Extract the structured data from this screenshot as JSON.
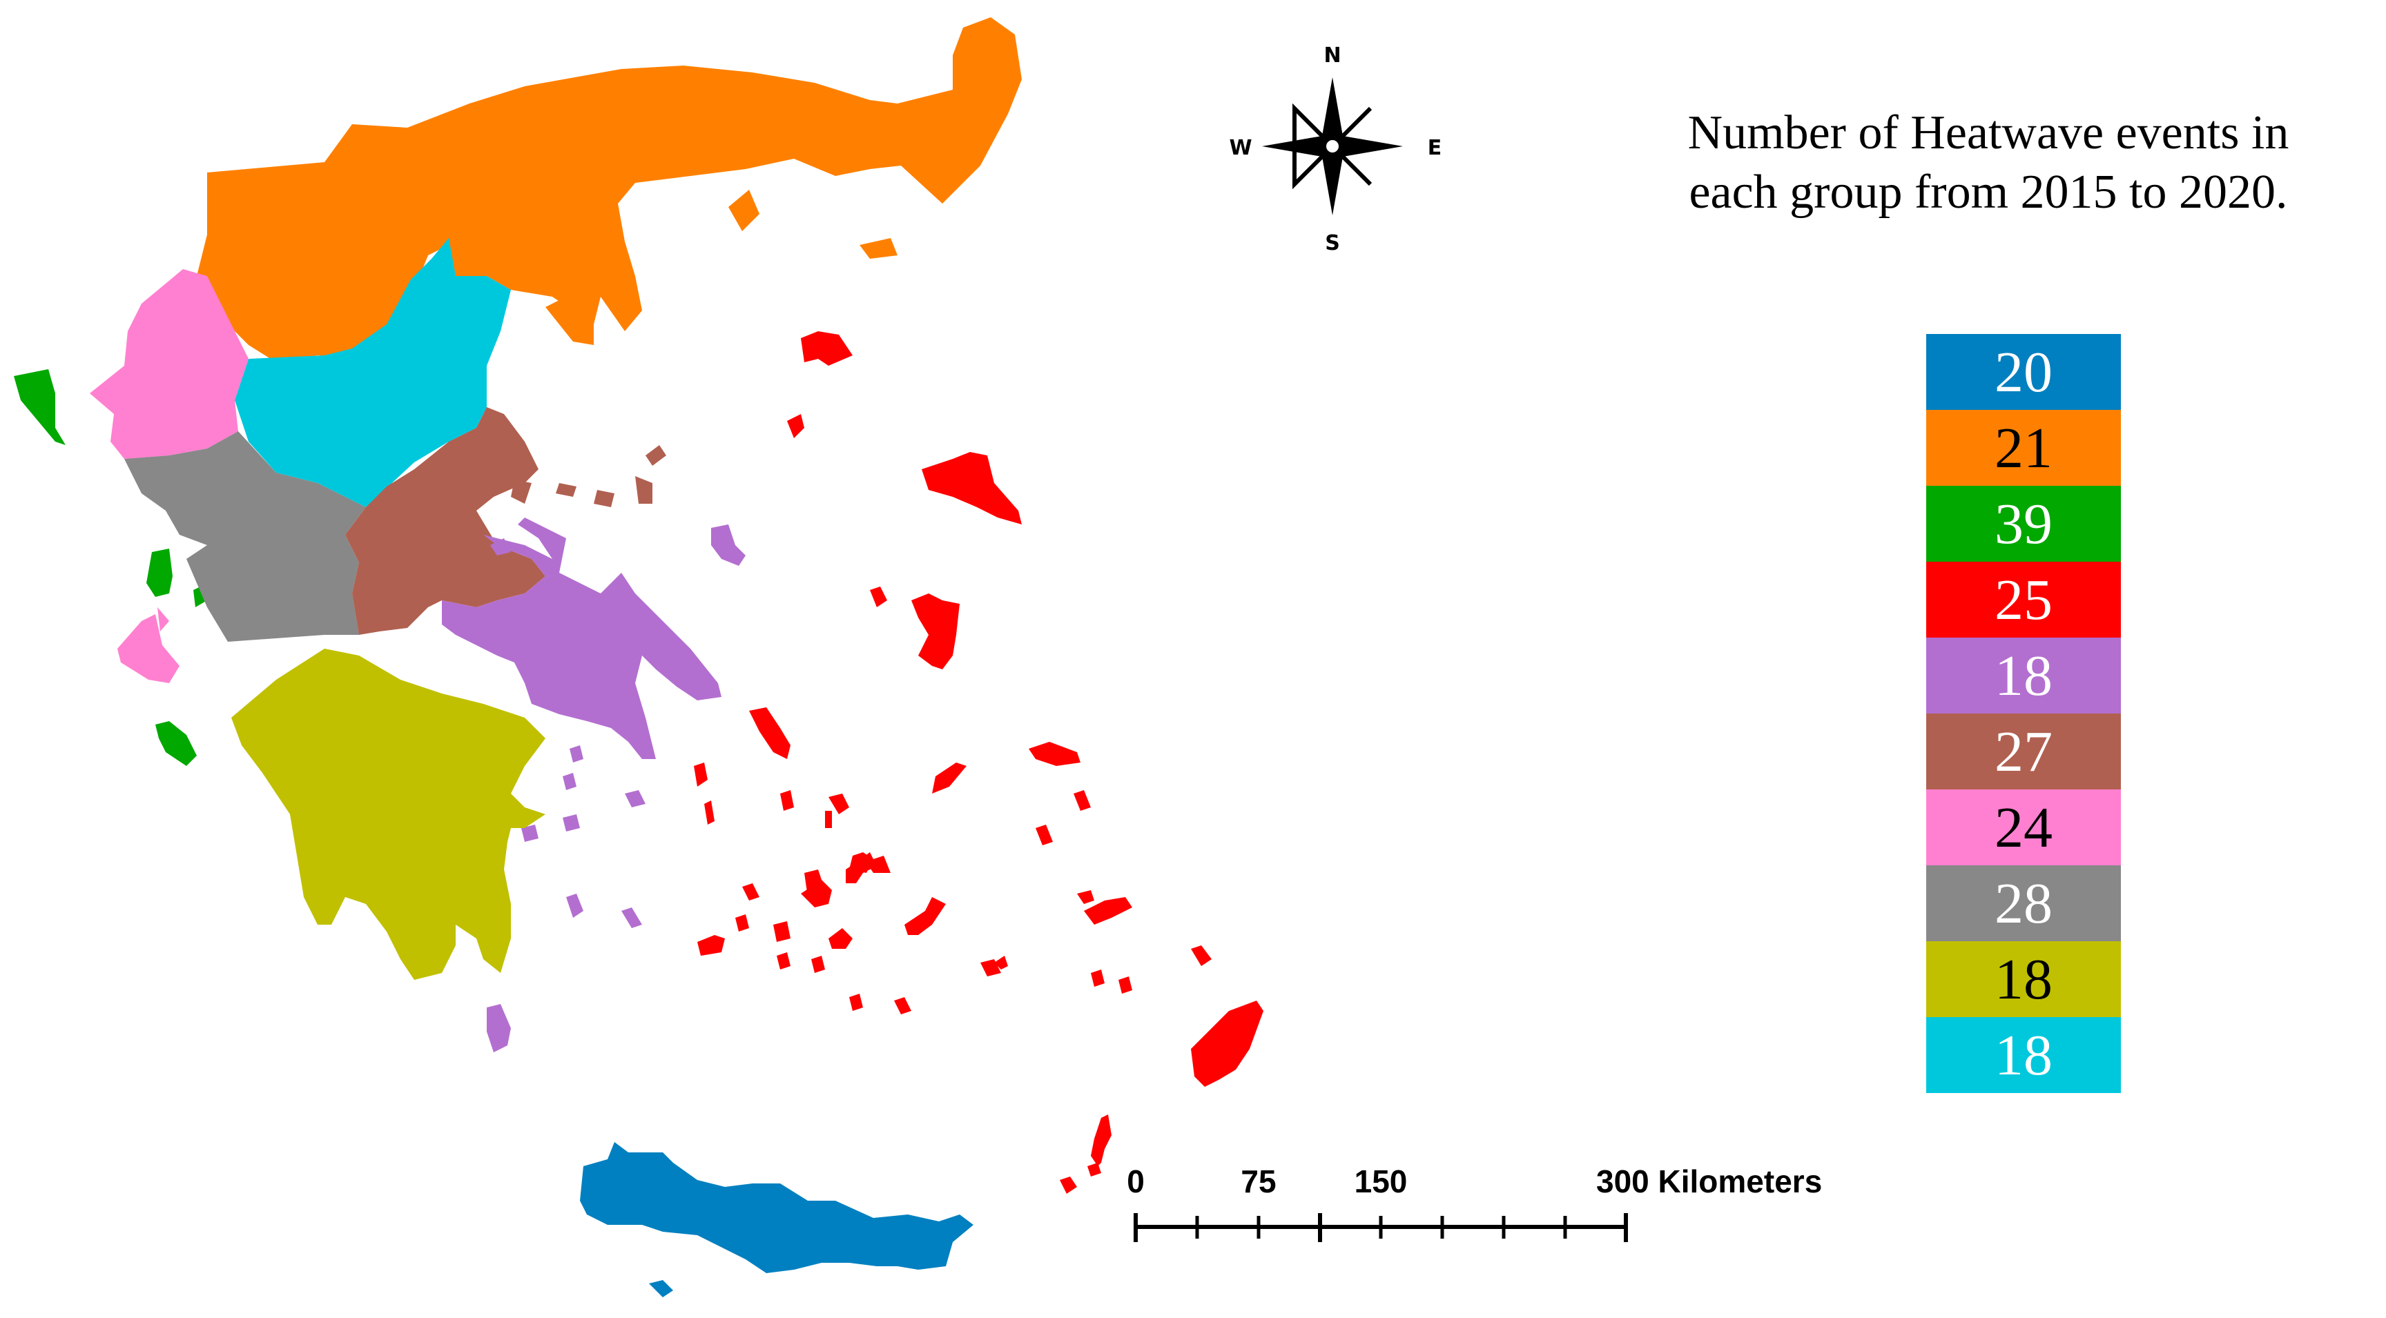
{
  "title_line1": "Number of Heatwave events in",
  "title_line2": "each group from 2015 to 2020.",
  "compass": {
    "n": "N",
    "s": "S",
    "e": "E",
    "w": "W"
  },
  "scale_bar": {
    "ticks": [
      "0",
      "75",
      "150",
      "300 Kilometers"
    ]
  },
  "legend": [
    {
      "value": "20",
      "color": "#0080C0",
      "text_color": "#ffffff"
    },
    {
      "value": "21",
      "color": "#FF8000",
      "text_color": "#000000"
    },
    {
      "value": "39",
      "color": "#00A800",
      "text_color": "#ffffff"
    },
    {
      "value": "25",
      "color": "#FF0000",
      "text_color": "#ffffff"
    },
    {
      "value": "18",
      "color": "#B36FD0",
      "text_color": "#ffffff"
    },
    {
      "value": "27",
      "color": "#B06050",
      "text_color": "#ffffff"
    },
    {
      "value": "24",
      "color": "#FF80D0",
      "text_color": "#000000"
    },
    {
      "value": "28",
      "color": "#888888",
      "text_color": "#ffffff"
    },
    {
      "value": "18",
      "color": "#C0C000",
      "text_color": "#000000"
    },
    {
      "value": "18",
      "color": "#00C8DC",
      "text_color": "#ffffff"
    }
  ]
}
